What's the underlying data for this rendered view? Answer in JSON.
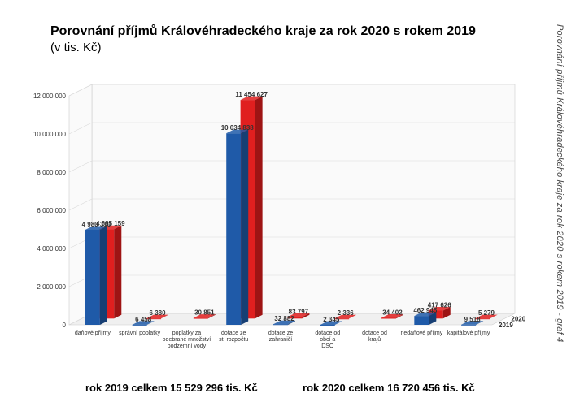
{
  "title": "Porovnání příjmů Královéhradeckého kraje za rok 2020 s rokem 2019",
  "subtitle": "(v tis. Kč)",
  "side_caption": "Porovnání příjmů Královéhradeckého kraje za rok 2020 s rokem 2019 - graf 4",
  "chart": {
    "type": "3d-grouped-bar",
    "categories": [
      "daňové příjmy",
      "správní poplatky",
      "poplatky za odebrané množství podzemní vody",
      "dotace ze st. rozpočtu",
      "dotace ze zahraničí",
      "dotace od obcí a DSO",
      "dotace od krajů",
      "nedaňové příjmy",
      "kapitálové příjmy"
    ],
    "series": [
      {
        "name": "2019",
        "color": "#1f5aa8",
        "shade": "#173f74",
        "label": "2019",
        "values": [
          4980310,
          6458,
          0,
          10034838,
          32882,
          2345,
          0,
          462945,
          9518
        ],
        "labels": [
          "4 980 310",
          "6 458",
          "",
          "10 034 838",
          "32 882",
          "2 345",
          "",
          "462 945",
          "9 518"
        ]
      },
      {
        "name": "2020",
        "color": "#e01f1f",
        "shade": "#9e1414",
        "label": "2020",
        "values": [
          4685159,
          6380,
          30851,
          11454627,
          83797,
          2336,
          34402,
          417626,
          5279
        ],
        "labels": [
          "4 685 159",
          "6 380",
          "30 851",
          "11 454 627",
          "83 797",
          "2 336",
          "34 402",
          "417 626",
          "5 279"
        ]
      }
    ],
    "ylim": [
      0,
      12000000
    ],
    "ytick_step": 2000000,
    "ytick_labels": [
      "0",
      "2 000 000",
      "4 000 000",
      "6 000 000",
      "8 000 000",
      "10 000 000",
      "12 000 000"
    ],
    "background_color": "#ffffff",
    "wall_color": "#fafafa",
    "floor_color": "#f0f0f0",
    "grid_color": "#d8d8d8",
    "depth_dx": 28,
    "depth_dy": -14
  },
  "totals": {
    "left": "rok 2019 celkem 15 529 296 tis. Kč",
    "right": "rok 2020 celkem 16 720 456  tis. Kč"
  }
}
